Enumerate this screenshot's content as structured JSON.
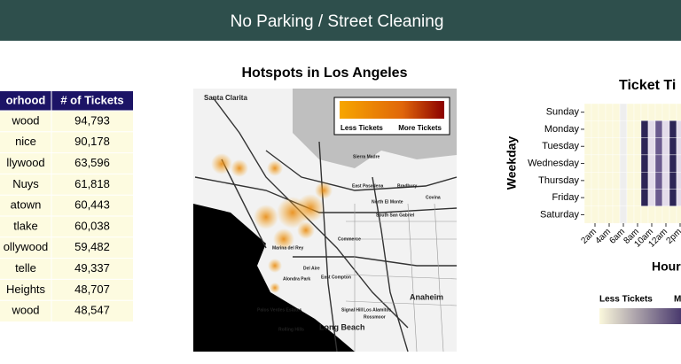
{
  "header": {
    "title": "No Parking / Street Cleaning"
  },
  "table": {
    "columns": [
      "orhood",
      "# of Tickets"
    ],
    "rows": [
      [
        "wood",
        "94,793"
      ],
      [
        "nice",
        "90,178"
      ],
      [
        "llywood",
        "63,596"
      ],
      [
        "Nuys",
        "61,818"
      ],
      [
        "atown",
        "60,443"
      ],
      [
        "tlake",
        "60,038"
      ],
      [
        "ollywood",
        "59,482"
      ],
      [
        "telle",
        "49,337"
      ],
      [
        "Heights",
        "48,707"
      ],
      [
        "wood",
        "48,547"
      ]
    ]
  },
  "map": {
    "title": "Hotspots in Los Angeles",
    "legend": {
      "low": "Less Tickets",
      "high": "More Tickets"
    },
    "places": [
      "Santa Clarita",
      "Sierra Madre",
      "East Pasadena",
      "Bradbury",
      "North El Monte",
      "South San Gabriel",
      "Commerce",
      "Marina del Rey",
      "Del Aire",
      "Alondra Park",
      "East Compton",
      "Anaheim",
      "Long Beach",
      "Rolling Hills",
      "Palos Verdes Estates",
      "Signal Hill",
      "Los Alamitos",
      "Rossmoor",
      "Covina"
    ]
  },
  "heatmap": {
    "title": "Ticket Ti",
    "y_label": "Weekday",
    "x_label": "Hour",
    "days": [
      "Sunday",
      "Monday",
      "Tuesday",
      "Wednesday",
      "Thursday",
      "Friday",
      "Saturday"
    ],
    "hours": [
      "2am",
      "4am",
      "6am",
      "8am",
      "10am",
      "12am",
      "2pm"
    ],
    "legend": {
      "low": "Less Tickets",
      "high": "M"
    }
  }
}
